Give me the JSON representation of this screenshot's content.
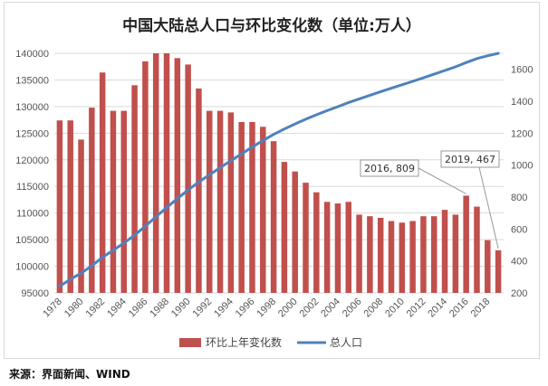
{
  "source": "来源：界面新闻、WIND",
  "colors": {
    "bar": "#C0504D",
    "line": "#4F81BD",
    "grid": "#d9d9d9"
  },
  "chart_data": {
    "type": "bar+line",
    "title": "中国大陆总人口与环比变化数（单位:万人）",
    "categories": [
      1978,
      1979,
      1980,
      1981,
      1982,
      1983,
      1984,
      1985,
      1986,
      1987,
      1988,
      1989,
      1990,
      1991,
      1992,
      1993,
      1994,
      1995,
      1996,
      1997,
      1998,
      1999,
      2000,
      2001,
      2002,
      2003,
      2004,
      2005,
      2006,
      2007,
      2008,
      2009,
      2010,
      2011,
      2012,
      2013,
      2014,
      2015,
      2016,
      2017,
      2018,
      2019
    ],
    "x_tick_labels": [
      "1978",
      "1980",
      "1982",
      "1984",
      "1986",
      "1988",
      "1990",
      "1992",
      "1994",
      "1996",
      "1998",
      "2000",
      "2002",
      "2004",
      "2006",
      "2008",
      "2010",
      "2012",
      "2014",
      "2016",
      "2018"
    ],
    "left_axis": {
      "ylim": [
        95000,
        140000
      ],
      "ticks": [
        "95000",
        "100000",
        "105000",
        "110000",
        "115000",
        "120000",
        "125000",
        "130000",
        "135000",
        "140000"
      ]
    },
    "right_axis": {
      "ylim": [
        200,
        1700
      ],
      "ticks": [
        "200",
        "400",
        "600",
        "800",
        "1000",
        "1200",
        "1400",
        "1600"
      ]
    },
    "series": [
      {
        "name": "环比上年变化数",
        "type": "bar",
        "axis": "right",
        "values": [
          1280,
          1280,
          1160,
          1360,
          1580,
          1340,
          1340,
          1500,
          1650,
          1700,
          1700,
          1670,
          1630,
          1480,
          1340,
          1340,
          1330,
          1270,
          1270,
          1240,
          1150,
          1020,
          960,
          890,
          830,
          770,
          760,
          770,
          690,
          680,
          670,
          650,
          640,
          650,
          680,
          680,
          720,
          690,
          809,
          740,
          530,
          467
        ]
      },
      {
        "name": "总人口",
        "type": "line",
        "axis": "left",
        "values": [
          96259,
          97542,
          98705,
          100072,
          101654,
          103008,
          104357,
          105851,
          107507,
          109300,
          111026,
          112704,
          114333,
          115823,
          117171,
          118517,
          119850,
          121121,
          122389,
          123626,
          124761,
          125786,
          126743,
          127627,
          128453,
          129227,
          129988,
          130756,
          131448,
          132129,
          132802,
          133450,
          134091,
          134735,
          135404,
          136072,
          136782,
          137462,
          138271,
          139008,
          139538,
          140005
        ]
      }
    ],
    "annotations": [
      {
        "text": "2016, 809",
        "year": 2016,
        "value": 809
      },
      {
        "text": "2019, 467",
        "year": 2019,
        "value": 467
      }
    ],
    "legend": {
      "position": "bottom",
      "labels": [
        "环比上年变化数",
        "总人口"
      ]
    }
  }
}
